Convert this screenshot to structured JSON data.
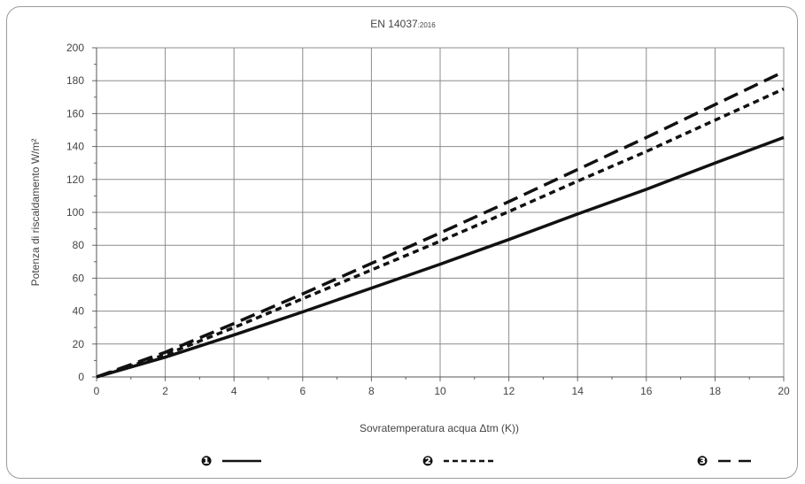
{
  "chart_data": {
    "type": "line",
    "title": "EN 14037",
    "title_suffix": ":2016",
    "xlabel": "Sovratemperatura acqua Δtm (K))",
    "ylabel": "Potenza di riscaldamento W/m²",
    "xlim": [
      0,
      20
    ],
    "ylim": [
      0,
      200
    ],
    "x_ticks": [
      0,
      2,
      4,
      6,
      8,
      10,
      12,
      14,
      16,
      18,
      20
    ],
    "y_ticks": [
      0,
      20,
      40,
      60,
      80,
      100,
      120,
      140,
      160,
      180,
      200
    ],
    "x_minor_ticks_per_major": 2,
    "y_minor_ticks_per_major": 2,
    "grid": true,
    "legend_position": "bottom",
    "series": [
      {
        "marker": "❶",
        "style": "solid",
        "color": "#111111",
        "x": [
          0,
          2,
          4,
          6,
          8,
          10,
          12,
          14,
          16,
          18,
          20
        ],
        "y": [
          0,
          12,
          25.5,
          39.5,
          54,
          68.5,
          83.5,
          99,
          114,
          130,
          145.5
        ]
      },
      {
        "marker": "❷",
        "style": "short-dash",
        "color": "#111111",
        "x": [
          0,
          2,
          4,
          6,
          8,
          10,
          12,
          14,
          16,
          18,
          20
        ],
        "y": [
          0,
          13.5,
          30,
          47.5,
          65,
          82.5,
          100.5,
          119,
          137,
          156,
          175
        ]
      },
      {
        "marker": "❸",
        "style": "long-dash",
        "color": "#111111",
        "x": [
          0,
          2,
          4,
          6,
          8,
          10,
          12,
          14,
          16,
          18,
          20
        ],
        "y": [
          0,
          15,
          32.5,
          50.5,
          69,
          87.5,
          106.5,
          126,
          145.5,
          165.5,
          185.5
        ]
      }
    ]
  }
}
